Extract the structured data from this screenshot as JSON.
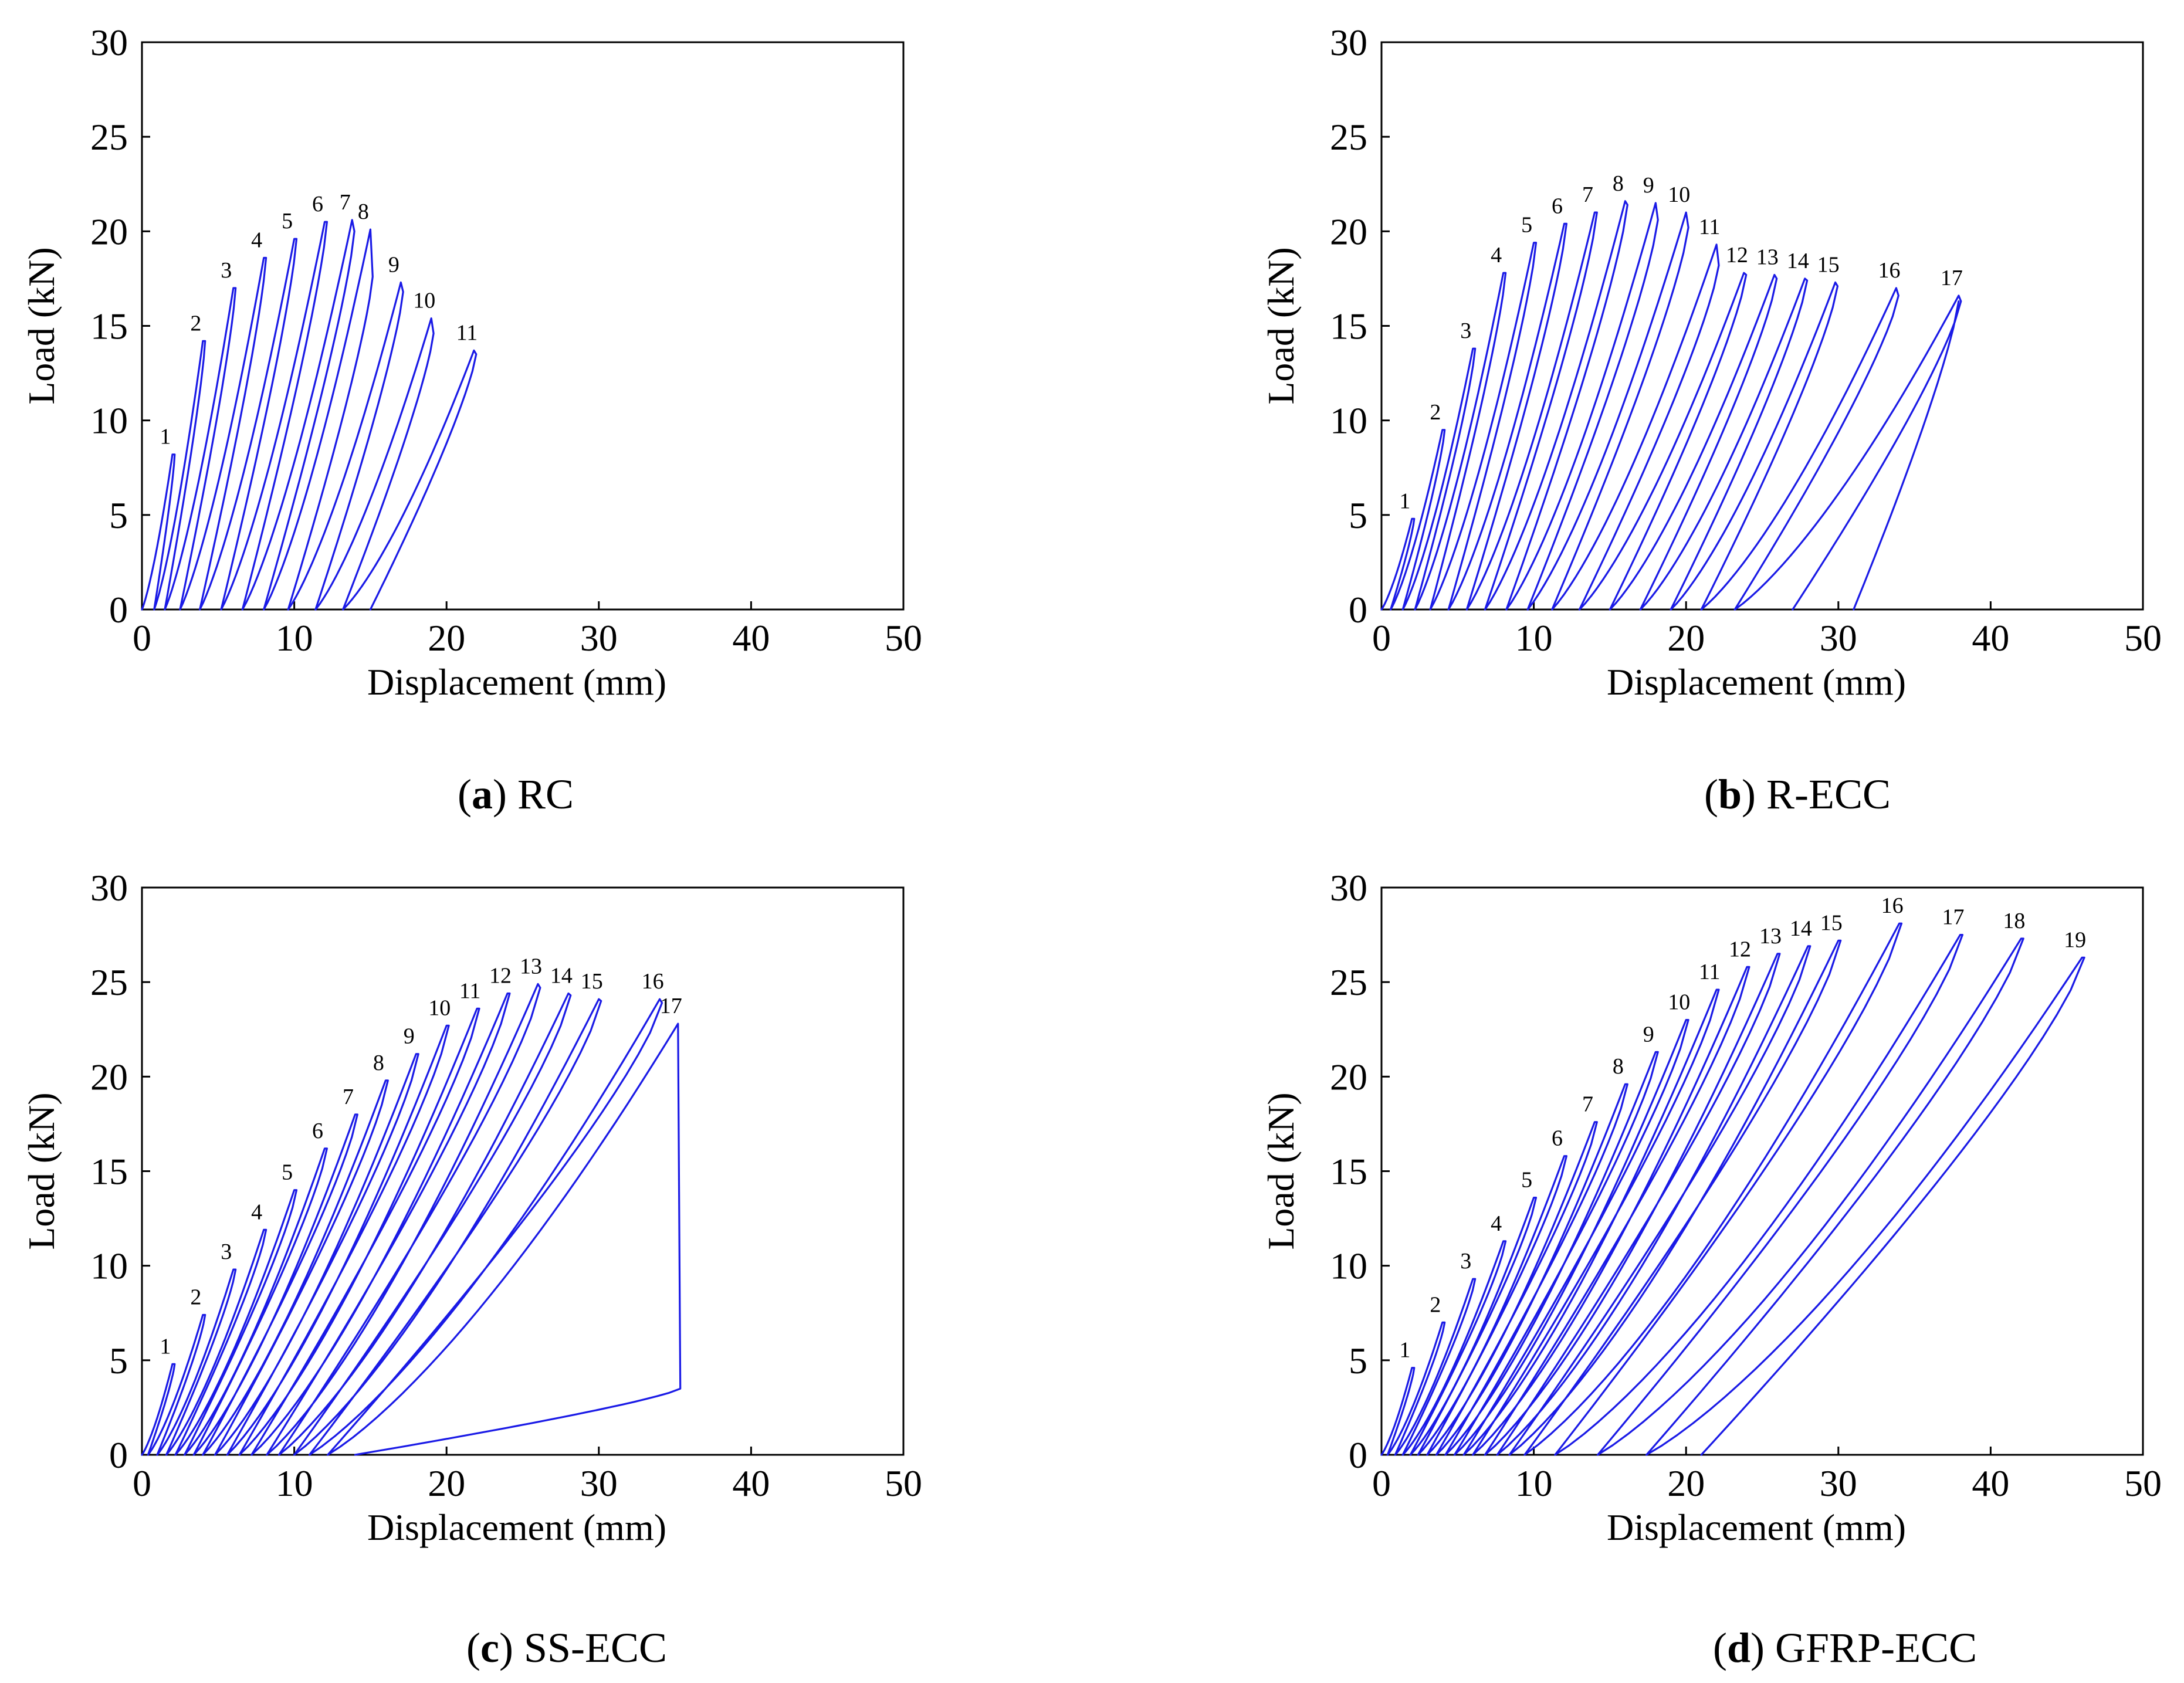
{
  "colors": {
    "curve": "#1a1ae6",
    "axis": "#000000",
    "background": "#ffffff"
  },
  "chart_data": [
    {
      "type": "line",
      "panel": "a",
      "caption_letter": "a",
      "caption_text": " RC",
      "xlabel": "Displacement (mm)",
      "ylabel": "Load (kN)",
      "xlim": [
        0,
        50
      ],
      "ylim": [
        0,
        30
      ],
      "xticks": [
        0,
        10,
        20,
        30,
        40,
        50
      ],
      "yticks": [
        0,
        5,
        10,
        15,
        20,
        25,
        30
      ],
      "grid": false,
      "series_description": "Load-displacement hysteresis loops (one loop per cycle)",
      "cycles": [
        {
          "label": "1",
          "peak_disp": 2.0,
          "peak_load": 8.2,
          "residual_disp": 0.8,
          "end_load": 8.2
        },
        {
          "label": "2",
          "peak_disp": 4.0,
          "peak_load": 14.2,
          "residual_disp": 1.5,
          "end_load": 14.2
        },
        {
          "label": "3",
          "peak_disp": 6.0,
          "peak_load": 17.0,
          "residual_disp": 2.5,
          "end_load": 17.0
        },
        {
          "label": "4",
          "peak_disp": 8.0,
          "peak_load": 18.6,
          "residual_disp": 3.8,
          "end_load": 18.6
        },
        {
          "label": "5",
          "peak_disp": 10.0,
          "peak_load": 19.6,
          "residual_disp": 5.2,
          "end_load": 19.6
        },
        {
          "label": "6",
          "peak_disp": 12.0,
          "peak_load": 20.5,
          "residual_disp": 6.6,
          "end_load": 20.5
        },
        {
          "label": "7",
          "peak_disp": 13.8,
          "peak_load": 20.6,
          "residual_disp": 8.0,
          "end_load": 20.0
        },
        {
          "label": "8",
          "peak_disp": 15.0,
          "peak_load": 20.1,
          "residual_disp": 9.6,
          "end_load": 17.6
        },
        {
          "label": "9",
          "peak_disp": 17.0,
          "peak_load": 17.3,
          "residual_disp": 11.4,
          "end_load": 16.8
        },
        {
          "label": "10",
          "peak_disp": 19.0,
          "peak_load": 15.4,
          "residual_disp": 13.2,
          "end_load": 14.6
        },
        {
          "label": "11",
          "peak_disp": 21.8,
          "peak_load": 13.7,
          "residual_disp": 15.0,
          "end_load": 13.5
        }
      ]
    },
    {
      "type": "line",
      "panel": "b",
      "caption_letter": "b",
      "caption_text": " R-ECC",
      "xlabel": "Displacement (mm)",
      "ylabel": "Load (kN)",
      "xlim": [
        0,
        50
      ],
      "ylim": [
        0,
        30
      ],
      "xticks": [
        0,
        10,
        20,
        30,
        40,
        50
      ],
      "yticks": [
        0,
        5,
        10,
        15,
        20,
        25,
        30
      ],
      "grid": false,
      "series_description": "Load-displacement hysteresis loops (one loop per cycle)",
      "cycles": [
        {
          "label": "1",
          "peak_disp": 2.0,
          "peak_load": 4.8,
          "residual_disp": 0.6,
          "end_load": 4.8
        },
        {
          "label": "2",
          "peak_disp": 4.0,
          "peak_load": 9.5,
          "residual_disp": 1.4,
          "end_load": 9.5
        },
        {
          "label": "3",
          "peak_disp": 6.0,
          "peak_load": 13.8,
          "residual_disp": 2.2,
          "end_load": 13.8
        },
        {
          "label": "4",
          "peak_disp": 8.0,
          "peak_load": 17.8,
          "residual_disp": 3.2,
          "end_load": 17.8
        },
        {
          "label": "5",
          "peak_disp": 10.0,
          "peak_load": 19.4,
          "residual_disp": 4.4,
          "end_load": 19.4
        },
        {
          "label": "6",
          "peak_disp": 12.0,
          "peak_load": 20.4,
          "residual_disp": 5.6,
          "end_load": 20.4
        },
        {
          "label": "7",
          "peak_disp": 14.0,
          "peak_load": 21.0,
          "residual_disp": 6.8,
          "end_load": 21.0
        },
        {
          "label": "8",
          "peak_disp": 16.0,
          "peak_load": 21.6,
          "residual_disp": 8.2,
          "end_load": 21.4
        },
        {
          "label": "9",
          "peak_disp": 18.0,
          "peak_load": 21.5,
          "residual_disp": 9.6,
          "end_load": 20.6
        },
        {
          "label": "10",
          "peak_disp": 20.0,
          "peak_load": 21.0,
          "residual_disp": 11.2,
          "end_load": 20.2
        },
        {
          "label": "11",
          "peak_disp": 22.0,
          "peak_load": 19.3,
          "residual_disp": 13.0,
          "end_load": 18.2
        },
        {
          "label": "12",
          "peak_disp": 23.8,
          "peak_load": 17.8,
          "residual_disp": 15.0,
          "end_load": 17.7
        },
        {
          "label": "13",
          "peak_disp": 25.8,
          "peak_load": 17.7,
          "residual_disp": 17.0,
          "end_load": 17.5
        },
        {
          "label": "14",
          "peak_disp": 27.8,
          "peak_load": 17.5,
          "residual_disp": 19.0,
          "end_load": 17.4
        },
        {
          "label": "15",
          "peak_disp": 29.8,
          "peak_load": 17.3,
          "residual_disp": 21.0,
          "end_load": 17.1
        },
        {
          "label": "16",
          "peak_disp": 33.8,
          "peak_load": 17.0,
          "residual_disp": 23.2,
          "end_load": 16.6
        },
        {
          "label": "17",
          "peak_disp": 37.9,
          "peak_load": 16.6,
          "residual_disp": 27.0,
          "end_load": 16.3
        }
      ],
      "final_unload_residual_disp": 31.0
    },
    {
      "type": "line",
      "panel": "c",
      "caption_letter": "c",
      "caption_text": " SS-ECC",
      "xlabel": "Displacement (mm)",
      "ylabel": "Load (kN)",
      "xlim": [
        0,
        50
      ],
      "ylim": [
        0,
        30
      ],
      "xticks": [
        0,
        10,
        20,
        30,
        40,
        50
      ],
      "yticks": [
        0,
        5,
        10,
        15,
        20,
        25,
        30
      ],
      "grid": false,
      "series_description": "Load-displacement hysteresis loops (one loop per cycle)",
      "cycles": [
        {
          "label": "1",
          "peak_disp": 2.0,
          "peak_load": 4.8,
          "residual_disp": 0.4,
          "end_load": 4.8
        },
        {
          "label": "2",
          "peak_disp": 4.0,
          "peak_load": 7.4,
          "residual_disp": 1.0,
          "end_load": 7.4
        },
        {
          "label": "3",
          "peak_disp": 6.0,
          "peak_load": 9.8,
          "residual_disp": 1.6,
          "end_load": 9.8
        },
        {
          "label": "4",
          "peak_disp": 8.0,
          "peak_load": 11.9,
          "residual_disp": 2.2,
          "end_load": 11.9
        },
        {
          "label": "5",
          "peak_disp": 10.0,
          "peak_load": 14.0,
          "residual_disp": 2.8,
          "end_load": 14.0
        },
        {
          "label": "6",
          "peak_disp": 12.0,
          "peak_load": 16.2,
          "residual_disp": 3.4,
          "end_load": 16.2
        },
        {
          "label": "7",
          "peak_disp": 14.0,
          "peak_load": 18.0,
          "residual_disp": 4.0,
          "end_load": 18.0
        },
        {
          "label": "8",
          "peak_disp": 16.0,
          "peak_load": 19.8,
          "residual_disp": 4.8,
          "end_load": 19.8
        },
        {
          "label": "9",
          "peak_disp": 18.0,
          "peak_load": 21.2,
          "residual_disp": 5.6,
          "end_load": 21.2
        },
        {
          "label": "10",
          "peak_disp": 20.0,
          "peak_load": 22.7,
          "residual_disp": 6.4,
          "end_load": 22.7
        },
        {
          "label": "11",
          "peak_disp": 22.0,
          "peak_load": 23.6,
          "residual_disp": 7.2,
          "end_load": 23.6
        },
        {
          "label": "12",
          "peak_disp": 24.0,
          "peak_load": 24.4,
          "residual_disp": 8.2,
          "end_load": 24.4
        },
        {
          "label": "13",
          "peak_disp": 26.0,
          "peak_load": 24.9,
          "residual_disp": 9.0,
          "end_load": 24.7
        },
        {
          "label": "14",
          "peak_disp": 28.0,
          "peak_load": 24.4,
          "residual_disp": 10.0,
          "end_load": 24.3
        },
        {
          "label": "15",
          "peak_disp": 30.0,
          "peak_load": 24.1,
          "residual_disp": 11.0,
          "end_load": 24.0
        },
        {
          "label": "16",
          "peak_disp": 34.0,
          "peak_load": 24.1,
          "residual_disp": 12.2,
          "end_load": 23.9
        },
        {
          "label": "17",
          "peak_disp": 35.2,
          "peak_load": 22.8,
          "residual_disp": 14.0,
          "end_load": 3.5
        }
      ]
    },
    {
      "type": "line",
      "panel": "d",
      "caption_letter": "d",
      "caption_text": " GFRP-ECC",
      "xlabel": "Displacement (mm)",
      "ylabel": "Load (kN)",
      "xlim": [
        0,
        50
      ],
      "ylim": [
        0,
        30
      ],
      "xticks": [
        0,
        10,
        20,
        30,
        40,
        50
      ],
      "yticks": [
        0,
        5,
        10,
        15,
        20,
        25,
        30
      ],
      "grid": false,
      "series_description": "Load-displacement hysteresis loops (one loop per cycle)",
      "cycles": [
        {
          "label": "1",
          "peak_disp": 2.0,
          "peak_load": 4.6,
          "residual_disp": 0.4,
          "end_load": 4.6
        },
        {
          "label": "2",
          "peak_disp": 4.0,
          "peak_load": 7.0,
          "residual_disp": 0.9,
          "end_load": 7.0
        },
        {
          "label": "3",
          "peak_disp": 6.0,
          "peak_load": 9.3,
          "residual_disp": 1.4,
          "end_load": 9.3
        },
        {
          "label": "4",
          "peak_disp": 8.0,
          "peak_load": 11.3,
          "residual_disp": 1.9,
          "end_load": 11.3
        },
        {
          "label": "5",
          "peak_disp": 10.0,
          "peak_load": 13.6,
          "residual_disp": 2.4,
          "end_load": 13.6
        },
        {
          "label": "6",
          "peak_disp": 12.0,
          "peak_load": 15.8,
          "residual_disp": 3.0,
          "end_load": 15.8
        },
        {
          "label": "7",
          "peak_disp": 14.0,
          "peak_load": 17.6,
          "residual_disp": 3.6,
          "end_load": 17.6
        },
        {
          "label": "8",
          "peak_disp": 16.0,
          "peak_load": 19.6,
          "residual_disp": 4.2,
          "end_load": 19.6
        },
        {
          "label": "9",
          "peak_disp": 18.0,
          "peak_load": 21.3,
          "residual_disp": 4.8,
          "end_load": 21.3
        },
        {
          "label": "10",
          "peak_disp": 20.0,
          "peak_load": 23.0,
          "residual_disp": 5.4,
          "end_load": 23.0
        },
        {
          "label": "11",
          "peak_disp": 22.0,
          "peak_load": 24.6,
          "residual_disp": 6.0,
          "end_load": 24.6
        },
        {
          "label": "12",
          "peak_disp": 24.0,
          "peak_load": 25.8,
          "residual_disp": 6.8,
          "end_load": 25.8
        },
        {
          "label": "13",
          "peak_disp": 26.0,
          "peak_load": 26.5,
          "residual_disp": 7.6,
          "end_load": 26.5
        },
        {
          "label": "14",
          "peak_disp": 28.0,
          "peak_load": 26.9,
          "residual_disp": 8.4,
          "end_load": 26.9
        },
        {
          "label": "15",
          "peak_disp": 30.0,
          "peak_load": 27.2,
          "residual_disp": 9.4,
          "end_load": 27.2
        },
        {
          "label": "16",
          "peak_disp": 34.0,
          "peak_load": 28.1,
          "residual_disp": 11.4,
          "end_load": 28.1
        },
        {
          "label": "17",
          "peak_disp": 38.0,
          "peak_load": 27.5,
          "residual_disp": 14.2,
          "end_load": 27.5
        },
        {
          "label": "18",
          "peak_disp": 42.0,
          "peak_load": 27.3,
          "residual_disp": 17.4,
          "end_load": 27.3
        },
        {
          "label": "19",
          "peak_disp": 46.0,
          "peak_load": 26.3,
          "residual_disp": 21.0,
          "end_load": 26.3
        }
      ]
    }
  ]
}
